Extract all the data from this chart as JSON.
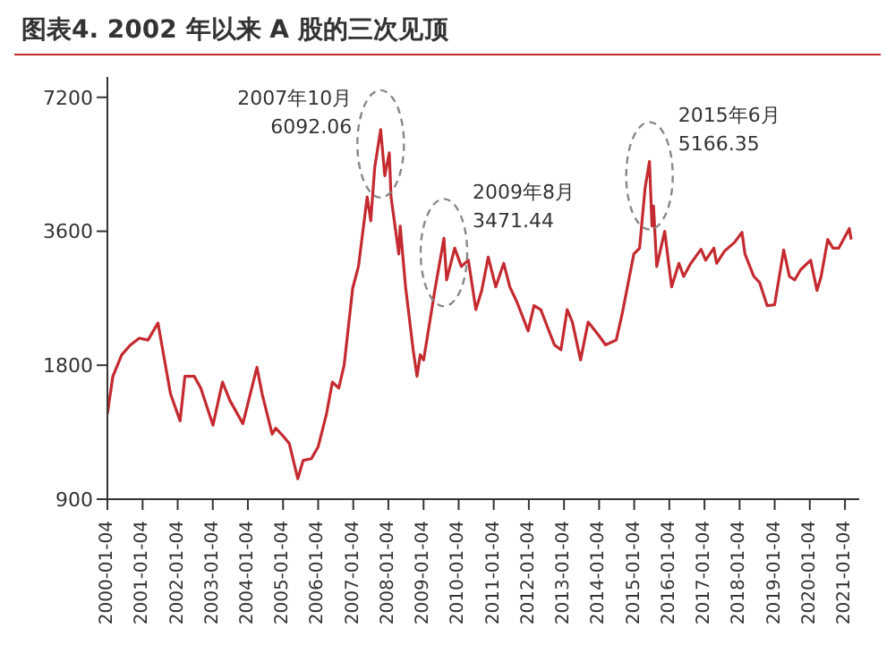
{
  "chart_data": {
    "type": "line",
    "title": "图表4.   2002 年以来 A 股的三次见顶",
    "x": [
      "2000-01-04",
      "2000-03-01",
      "2000-06-01",
      "2000-09-01",
      "2000-12-01",
      "2001-03-01",
      "2001-06-13",
      "2001-08-01",
      "2001-10-22",
      "2002-01-29",
      "2002-03-20",
      "2002-06-25",
      "2002-09-01",
      "2003-01-06",
      "2003-04-15",
      "2003-07-01",
      "2003-11-13",
      "2004-04-07",
      "2004-06-01",
      "2004-09-13",
      "2004-10-20",
      "2005-01-01",
      "2005-03-10",
      "2005-06-06",
      "2005-08-01",
      "2005-10-25",
      "2006-01-04",
      "2006-04-01",
      "2006-06-01",
      "2006-08-07",
      "2006-10-01",
      "2006-12-29",
      "2007-02-27",
      "2007-05-29",
      "2007-07-05",
      "2007-08-15",
      "2007-10-16",
      "2007-11-28",
      "2008-01-14",
      "2008-02-01",
      "2008-04-22",
      "2008-05-06",
      "2008-07-01",
      "2008-09-18",
      "2008-10-28",
      "2008-12-01",
      "2009-01-05",
      "2009-03-02",
      "2009-05-01",
      "2009-08-04",
      "2009-09-01",
      "2009-11-24",
      "2010-02-01",
      "2010-04-15",
      "2010-07-02",
      "2010-09-01",
      "2010-11-08",
      "2011-01-25",
      "2011-04-18",
      "2011-06-20",
      "2011-09-01",
      "2011-12-28",
      "2012-02-27",
      "2012-05-07",
      "2012-09-26",
      "2012-12-03",
      "2013-02-06",
      "2013-04-01",
      "2013-06-25",
      "2013-09-12",
      "2014-01-01",
      "2014-03-12",
      "2014-07-01",
      "2014-09-01",
      "2014-12-31",
      "2015-03-01",
      "2015-04-27",
      "2015-06-12",
      "2015-07-08",
      "2015-07-24",
      "2015-08-26",
      "2015-11-17",
      "2016-01-28",
      "2016-04-13",
      "2016-06-01",
      "2016-08-15",
      "2016-11-29",
      "2017-01-16",
      "2017-04-11",
      "2017-05-10",
      "2017-08-01",
      "2017-11-13",
      "2018-01-29",
      "2018-03-01",
      "2018-06-01",
      "2018-08-01",
      "2018-10-18",
      "2019-01-03",
      "2019-04-08",
      "2019-06-06",
      "2019-08-01",
      "2019-10-01",
      "2020-01-13",
      "2020-03-19",
      "2020-05-01",
      "2020-07-09",
      "2020-09-01",
      "2020-11-01",
      "2021-01-04",
      "2021-02-18",
      "2021-03-10"
    ],
    "series": [
      {
        "color": "#c42a2f",
        "values": [
          1400,
          1700,
          1900,
          2000,
          2070,
          2050,
          2240,
          1950,
          1550,
          1350,
          1700,
          1700,
          1600,
          1320,
          1650,
          1500,
          1330,
          1780,
          1550,
          1260,
          1300,
          1250,
          1200,
          1000,
          1100,
          1110,
          1180,
          1400,
          1650,
          1600,
          1800,
          2680,
          3000,
          4300,
          3800,
          5000,
          6092,
          4800,
          5400,
          4300,
          3200,
          3700,
          2700,
          1950,
          1700,
          1900,
          1850,
          2200,
          2650,
          3471,
          2800,
          3300,
          3000,
          3100,
          2400,
          2650,
          3150,
          2700,
          3050,
          2700,
          2500,
          2150,
          2450,
          2400,
          2000,
          1950,
          2400,
          2250,
          1850,
          2250,
          2100,
          2000,
          2050,
          2350,
          3200,
          3300,
          4500,
          5166,
          3700,
          4100,
          3000,
          3600,
          2700,
          3050,
          2850,
          3050,
          3280,
          3100,
          3300,
          3050,
          3250,
          3400,
          3580,
          3200,
          2850,
          2760,
          2450,
          2460,
          3270,
          2850,
          2800,
          2950,
          3100,
          2650,
          2850,
          3450,
          3300,
          3300,
          3500,
          3650,
          3450
        ]
      }
    ],
    "xlim": [
      "2000-01-04",
      "2021-06-01"
    ],
    "xticks": [
      "2000-01-04",
      "2001-01-04",
      "2002-01-04",
      "2003-01-04",
      "2004-01-04",
      "2005-01-04",
      "2006-01-04",
      "2007-01-04",
      "2008-01-04",
      "2009-01-04",
      "2010-01-04",
      "2011-01-04",
      "2012-01-04",
      "2013-01-04",
      "2014-01-04",
      "2015-01-04",
      "2016-01-04",
      "2017-01-04",
      "2018-01-04",
      "2019-01-04",
      "2020-01-04",
      "2021-01-04"
    ],
    "log": true,
    "ylim": [
      900,
      8000
    ],
    "yticks": [
      900,
      1800,
      3600,
      7200
    ],
    "marker": "none",
    "line_style": "solid",
    "annotations": [
      {
        "text": "2007年10月\n6092.06",
        "x": "2007-10-16",
        "y": 6092
      },
      {
        "text": "2009年8月\n3471.44",
        "x": "2009-08-04",
        "y": 3471
      },
      {
        "text": "2015年6月\n5166.35",
        "x": "2015-06-12",
        "y": 5166
      }
    ]
  }
}
